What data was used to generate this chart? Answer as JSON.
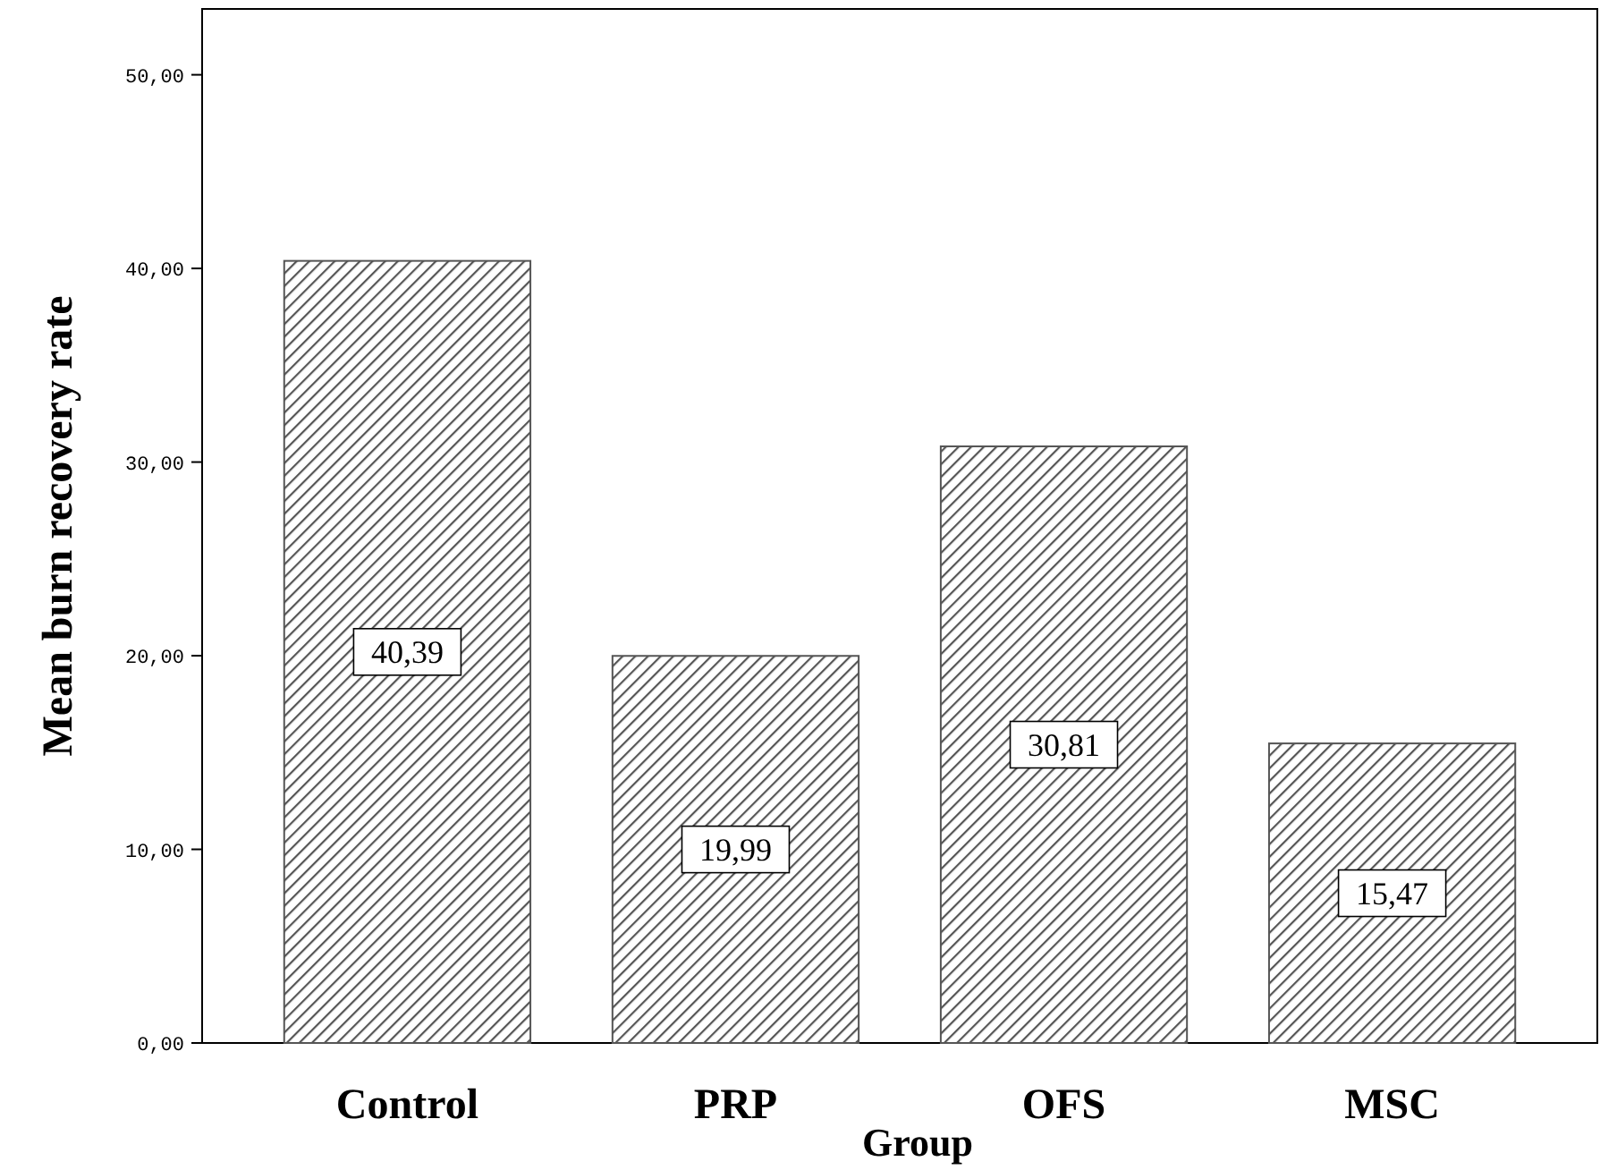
{
  "chart_data": {
    "type": "bar",
    "xlabel": "Group",
    "ylabel": "Mean burn recovery rate",
    "categories": [
      "Control",
      "PRP",
      "OFS",
      "MSC"
    ],
    "values": [
      40.39,
      19.99,
      30.81,
      15.47
    ],
    "value_labels": [
      "40,39",
      "19,99",
      "30,81",
      "15,47"
    ],
    "color": "#555555",
    "ylim": [
      0,
      53.4
    ],
    "yticks": [
      {
        "value": 0,
        "label": "0,00"
      },
      {
        "value": 10,
        "label": "10,00"
      },
      {
        "value": 20,
        "label": "20,00"
      },
      {
        "value": 30,
        "label": "30,00"
      },
      {
        "value": 40,
        "label": "40,00"
      },
      {
        "value": 50,
        "label": "50,00"
      }
    ],
    "grid": false
  }
}
